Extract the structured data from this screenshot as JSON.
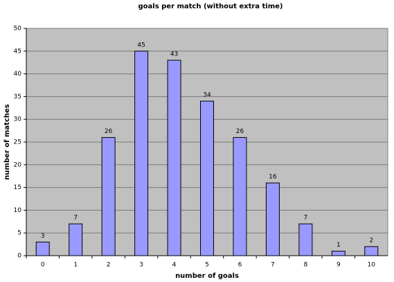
{
  "chart_data": {
    "type": "bar",
    "title": "goals per match (without extra time)",
    "x_label": "number of goals",
    "y_label": "number of matches",
    "categories": [
      "0",
      "1",
      "2",
      "3",
      "4",
      "5",
      "6",
      "7",
      "8",
      "9",
      "10"
    ],
    "values": [
      3,
      7,
      26,
      45,
      43,
      34,
      26,
      16,
      7,
      1,
      2
    ],
    "color": "#9999ff",
    "plot_background": "#c0c0c0",
    "ylim": [
      0,
      50
    ],
    "yticks": [
      0,
      5,
      10,
      15,
      20,
      25,
      30,
      35,
      40,
      45,
      50
    ],
    "grid": true,
    "data_labels": true
  }
}
